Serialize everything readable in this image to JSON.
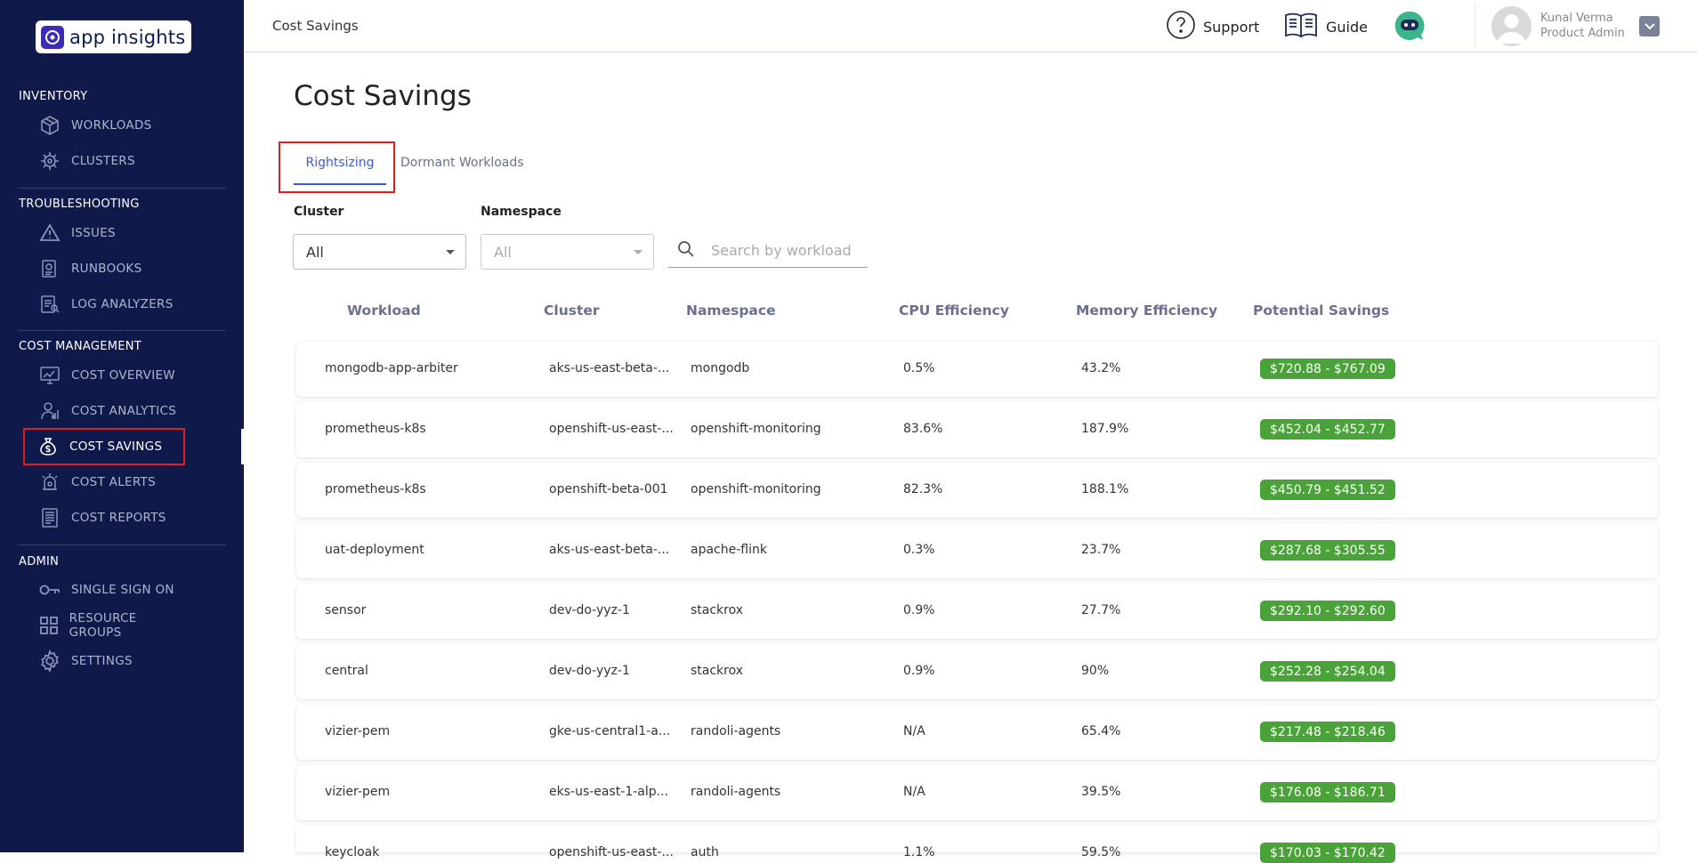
{
  "app": {
    "logo_text": "app insights"
  },
  "sidebar": {
    "sections": [
      {
        "title": "INVENTORY",
        "items": [
          {
            "label": "WORKLOADS",
            "icon": "cube-icon"
          },
          {
            "label": "CLUSTERS",
            "icon": "helm-icon"
          }
        ]
      },
      {
        "title": "TROUBLESHOOTING",
        "items": [
          {
            "label": "ISSUES",
            "icon": "warning-icon"
          },
          {
            "label": "RUNBOOKS",
            "icon": "runbook-icon"
          },
          {
            "label": "LOG ANALYZERS",
            "icon": "log-analyzer-icon"
          }
        ]
      },
      {
        "title": "COST MANAGEMENT",
        "items": [
          {
            "label": "COST OVERVIEW",
            "icon": "monitor-chart-icon"
          },
          {
            "label": "COST ANALYTICS",
            "icon": "analytics-icon"
          },
          {
            "label": "COST SAVINGS",
            "icon": "money-bag-icon",
            "active": true
          },
          {
            "label": "COST ALERTS",
            "icon": "alarm-icon"
          },
          {
            "label": "COST REPORTS",
            "icon": "report-icon"
          }
        ]
      },
      {
        "title": "ADMIN",
        "items": [
          {
            "label": "SINGLE SIGN ON",
            "icon": "key-icon"
          },
          {
            "label": "RESOURCE GROUPS",
            "icon": "grid-icon"
          },
          {
            "label": "SETTINGS",
            "icon": "gear-icon"
          }
        ]
      }
    ]
  },
  "header": {
    "breadcrumb": "Cost Savings",
    "support_label": "Support",
    "guide_label": "Guide",
    "user_name": "Kunal Verma",
    "user_role": "Product Admin"
  },
  "main": {
    "title": "Cost Savings",
    "tabs": [
      {
        "label": "Rightsizing",
        "active": true
      },
      {
        "label": "Dormant Workloads",
        "active": false
      }
    ],
    "filters": {
      "cluster_label": "Cluster",
      "cluster_value": "All",
      "namespace_label": "Namespace",
      "namespace_value": "All",
      "search_placeholder": "Search by workload"
    },
    "table": {
      "columns": [
        "Workload",
        "Cluster",
        "Namespace",
        "CPU Efficiency",
        "Memory Efficiency",
        "Potential Savings"
      ],
      "rows": [
        {
          "workload": "mongodb-app-arbiter",
          "cluster": "aks-us-east-beta-...",
          "namespace": "mongodb",
          "cpu": "0.5%",
          "memory": "43.2%",
          "savings": "$720.88 - $767.09"
        },
        {
          "workload": "prometheus-k8s",
          "cluster": "openshift-us-east-...",
          "namespace": "openshift-monitoring",
          "cpu": "83.6%",
          "memory": "187.9%",
          "savings": "$452.04 - $452.77"
        },
        {
          "workload": "prometheus-k8s",
          "cluster": "openshift-beta-001",
          "namespace": "openshift-monitoring",
          "cpu": "82.3%",
          "memory": "188.1%",
          "savings": "$450.79 - $451.52"
        },
        {
          "workload": "uat-deployment",
          "cluster": "aks-us-east-beta-...",
          "namespace": "apache-flink",
          "cpu": "0.3%",
          "memory": "23.7%",
          "savings": "$287.68 - $305.55"
        },
        {
          "workload": "sensor",
          "cluster": "dev-do-yyz-1",
          "namespace": "stackrox",
          "cpu": "0.9%",
          "memory": "27.7%",
          "savings": "$292.10 - $292.60"
        },
        {
          "workload": "central",
          "cluster": "dev-do-yyz-1",
          "namespace": "stackrox",
          "cpu": "0.9%",
          "memory": "90%",
          "savings": "$252.28 - $254.04"
        },
        {
          "workload": "vizier-pem",
          "cluster": "gke-us-central1-a...",
          "namespace": "randoli-agents",
          "cpu": "N/A",
          "memory": "65.4%",
          "savings": "$217.48 - $218.46"
        },
        {
          "workload": "vizier-pem",
          "cluster": "eks-us-east-1-alp...",
          "namespace": "randoli-agents",
          "cpu": "N/A",
          "memory": "39.5%",
          "savings": "$176.08 - $186.71"
        },
        {
          "workload": "keycloak",
          "cluster": "openshift-us-east-...",
          "namespace": "auth",
          "cpu": "1.1%",
          "memory": "59.5%",
          "savings": "$170.03 - $170.42"
        }
      ]
    }
  },
  "colors": {
    "sidebar_bg": "#0f1a4a",
    "accent": "#3a5bd6",
    "savings_badge": "#4aa338",
    "highlight": "#e01e1e"
  }
}
